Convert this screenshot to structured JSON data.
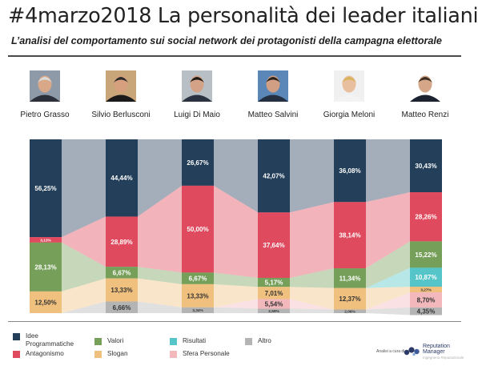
{
  "header": {
    "title": "#4marzo2018 La personalità dei leader italiani",
    "subtitle": "L’analisi del comportamento sui social network dei protagonisti della campagna elettorale"
  },
  "leaders": [
    "Pietro Grasso",
    "Silvio Berlusconi",
    "Luigi Di Maio",
    "Matteo Salvini",
    "Giorgia Meloni",
    "Matteo Renzi"
  ],
  "chart_data": {
    "type": "bar",
    "stacked": true,
    "normalized_to_100": true,
    "categories": [
      "Pietro Grasso",
      "Silvio Berlusconi",
      "Luigi Di Maio",
      "Matteo Salvini",
      "Giorgia Meloni",
      "Matteo Renzi"
    ],
    "series": [
      {
        "name": "Idee Programmatiche",
        "color": "#233f5a",
        "values": [
          56.25,
          44.44,
          26.67,
          42.07,
          36.08,
          30.43
        ],
        "labels": [
          "56,25%",
          "44,44%",
          "26,67%",
          "42,07%",
          "36,08%",
          "30,43%"
        ]
      },
      {
        "name": "Antagonismo",
        "color": "#df4a5e",
        "values": [
          3.13,
          28.89,
          50.0,
          37.64,
          38.14,
          28.26
        ],
        "labels": [
          "3,13%",
          "28,89%",
          "50,00%",
          "37,64%",
          "38,14%",
          "28,26%"
        ]
      },
      {
        "name": "Valori",
        "color": "#76a05a",
        "values": [
          28.13,
          6.67,
          6.67,
          5.17,
          11.34,
          15.22
        ],
        "labels": [
          "28,13%",
          "6,67%",
          "6,67%",
          "5,17%",
          "11,34%",
          "15,22%"
        ]
      },
      {
        "name": "Risultati",
        "color": "#55c5c9",
        "values": [
          0,
          0,
          0,
          0,
          0,
          10.87
        ],
        "labels": [
          "",
          "",
          "",
          "",
          "",
          "10,87%"
        ]
      },
      {
        "name": "Slogan",
        "color": "#f0c07e",
        "values": [
          12.5,
          13.33,
          13.33,
          7.01,
          12.37,
          3.27
        ],
        "labels": [
          "12,50%",
          "13,33%",
          "13,33%",
          "7,01%",
          "12,37%",
          "3,27%"
        ]
      },
      {
        "name": "Sfera Personale",
        "color": "#f2b8bc",
        "values": [
          0,
          0,
          0,
          5.54,
          0,
          8.7
        ],
        "labels": [
          "",
          "",
          "",
          "5,54%",
          "",
          "8,70%"
        ]
      },
      {
        "name": "Altro",
        "color": "#b4b4b4",
        "values": [
          0,
          6.66,
          3.34,
          2.59,
          2.06,
          4.35
        ],
        "labels": [
          "",
          "6,66%",
          "3,34%",
          "2,59%",
          "2,06%",
          "4,35%"
        ]
      }
    ],
    "ylim": [
      0,
      100
    ],
    "legend_position": "bottom"
  },
  "legend": [
    {
      "label": "Idee\nProgrammatiche",
      "color": "#233f5a"
    },
    {
      "label": "Antagonismo",
      "color": "#df4a5e"
    },
    {
      "label": "Valori",
      "color": "#76a05a"
    },
    {
      "label": "Slogan",
      "color": "#f0c07e"
    },
    {
      "label": "Risultati",
      "color": "#55c5c9"
    },
    {
      "label": "Sfera Personale",
      "color": "#f2b8bc"
    },
    {
      "label": "Altro",
      "color": "#b4b4b4"
    }
  ],
  "logo": {
    "prefix": "Analisi a cura di",
    "name_line1": "Reputation",
    "name_line2": "Manager",
    "tagline": "Ingegneria Reputazionale"
  }
}
